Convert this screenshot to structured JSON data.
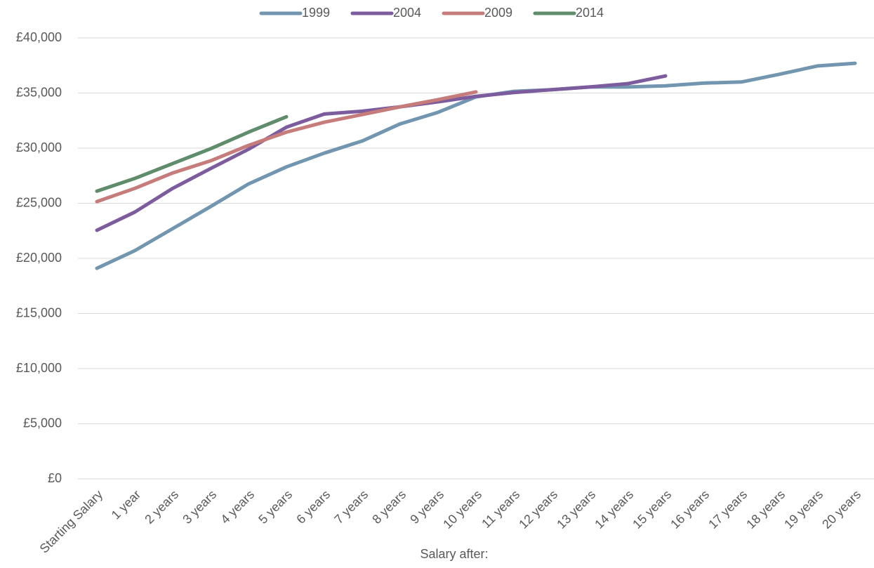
{
  "chart_data": {
    "type": "line",
    "x_label": "Salary after:",
    "categories": [
      "Starting Salary",
      "1 year",
      "2 years",
      "3 years",
      "4 years",
      "5 years",
      "6 years",
      "7 years",
      "8 years",
      "9 years",
      "10 years",
      "11 years",
      "12 years",
      "13 years",
      "14 years",
      "15 years",
      "16 years",
      "17 years",
      "18 years",
      "19 years",
      "20 years"
    ],
    "series": [
      {
        "name": "1999",
        "color": "#7295b0",
        "values": [
          19100,
          20700,
          22700,
          24700,
          26750,
          28300,
          29550,
          30650,
          32200,
          33250,
          34650,
          35150,
          35300,
          35550,
          35550,
          35650,
          35900,
          36000,
          36700,
          37450,
          37700
        ]
      },
      {
        "name": "2004",
        "color": "#7d5c9e",
        "values": [
          22550,
          24200,
          26350,
          28150,
          29900,
          31900,
          33100,
          33350,
          33750,
          34200,
          34700,
          35050,
          35300,
          35550,
          35850,
          36550,
          null,
          null,
          null,
          null,
          null
        ]
      },
      {
        "name": "2009",
        "color": "#c67c7b",
        "values": [
          25150,
          26350,
          27750,
          28850,
          30250,
          31450,
          32350,
          33050,
          33750,
          34400,
          35100,
          null,
          null,
          null,
          null,
          null,
          null,
          null,
          null,
          null,
          null
        ]
      },
      {
        "name": "2014",
        "color": "#5f8c6a",
        "values": [
          26100,
          27250,
          28600,
          29950,
          31450,
          32850,
          null,
          null,
          null,
          null,
          null,
          null,
          null,
          null,
          null,
          null,
          null,
          null,
          null,
          null,
          null
        ]
      }
    ],
    "ylim": [
      0,
      40000
    ],
    "yticks": [
      {
        "value": 0,
        "label": "£0"
      },
      {
        "value": 5000,
        "label": "£5,000"
      },
      {
        "value": 10000,
        "label": "£10,000"
      },
      {
        "value": 15000,
        "label": "£15,000"
      },
      {
        "value": 20000,
        "label": "£20,000"
      },
      {
        "value": 25000,
        "label": "£25,000"
      },
      {
        "value": 30000,
        "label": "£30,000"
      },
      {
        "value": 35000,
        "label": "£35,000"
      },
      {
        "value": 40000,
        "label": "£40,000"
      }
    ],
    "grid": true,
    "legend": "top"
  }
}
